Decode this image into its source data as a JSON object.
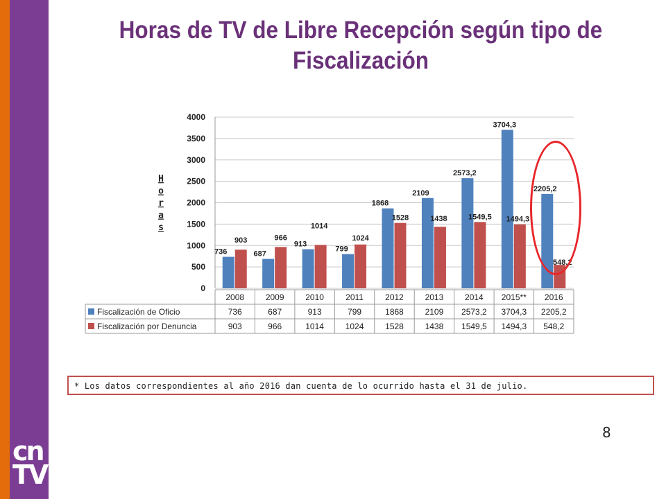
{
  "title": "Horas de TV de Libre Recepción según tipo de Fiscalización",
  "footnote": "* Los datos correspondientes al año 2016 dan cuenta de lo ocurrido hasta el 31 de julio.",
  "page_number": "8",
  "logo": {
    "line1": "cn",
    "line2": "TV"
  },
  "colors": {
    "oficio": "#4f81bd",
    "denuncia": "#c0504d",
    "title": "#6a3179",
    "bar_purple": "#7b3d93",
    "bar_orange": "#e46c0a",
    "oval": "#e8262b"
  },
  "chart_data": {
    "type": "bar",
    "ylabel": "Horas",
    "ylim": [
      0,
      4000
    ],
    "yticks": [
      "0",
      "500",
      "1000",
      "1500",
      "2000",
      "2500",
      "3000",
      "3500",
      "4000"
    ],
    "yticks_values": [
      0,
      500,
      1000,
      1500,
      2000,
      2500,
      3000,
      3500,
      4000
    ],
    "grid": true,
    "categories": [
      "2008",
      "2009",
      "2010",
      "2011",
      "2012",
      "2013",
      "2014",
      "2015**",
      "2016"
    ],
    "series": [
      {
        "name": "Fiscalización de Oficio",
        "values": [
          736,
          687,
          913,
          799,
          1868,
          2109,
          2573.2,
          3704.3,
          2205.2
        ],
        "labels": [
          "736",
          "687",
          "913",
          "799",
          "1868",
          "2109",
          "2573,2",
          "3704,3",
          "2205,2"
        ]
      },
      {
        "name": "Fiscalización por Denuncia",
        "values": [
          903,
          966,
          1014,
          1024,
          1528,
          1438,
          1549.5,
          1494.3,
          548.2
        ],
        "labels": [
          "903",
          "966",
          "1014",
          "1024",
          "1528",
          "1438",
          "1549,5",
          "1494,3",
          "548,2"
        ]
      }
    ],
    "legend": "data-table-below",
    "highlighted_category": "2016"
  }
}
